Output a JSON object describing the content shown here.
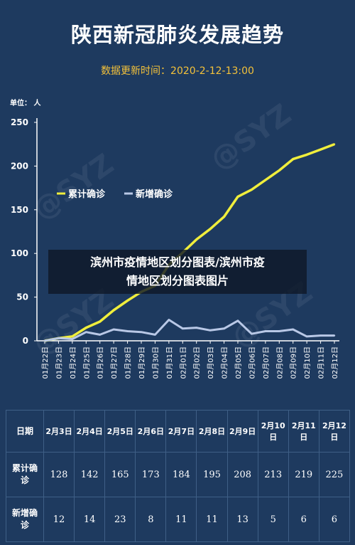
{
  "header": {
    "title": "陕西新冠肺炎发展趋势",
    "update_time": "数据更新时间：2020-2-12-13:00",
    "unit": "单位： 人"
  },
  "overlay": {
    "line1": "滨州市疫情地区划分图表/滨州市疫",
    "line2": "情地区划分图表图片"
  },
  "watermark": "@SYZ",
  "colors": {
    "background": "#1e3a5f",
    "cumulative": "#f0ee3c",
    "new": "#b9c8e6",
    "title_accent": "#f3c13a"
  },
  "chart_data": {
    "type": "line",
    "ylim": [
      0,
      250
    ],
    "yticks": [
      0,
      50,
      100,
      150,
      200,
      250
    ],
    "x": [
      "01月22日",
      "01月23日",
      "01月24日",
      "01月25日",
      "01月26日",
      "01月27日",
      "01月28日",
      "01月29日",
      "01月30日",
      "01月31日",
      "02月01日",
      "02月02日",
      "02月03日",
      "02月04日",
      "02月05日",
      "02月06日",
      "02月07日",
      "02月08日",
      "02月09日",
      "02月10日",
      "02月11日",
      "02月12日"
    ],
    "series": [
      {
        "name": "累计确诊",
        "values": [
          0,
          3,
          5,
          15,
          22,
          35,
          46,
          56,
          63,
          87,
          101,
          116,
          128,
          142,
          165,
          173,
          184,
          195,
          208,
          213,
          219,
          225
        ]
      },
      {
        "name": "新增确诊",
        "values": [
          0,
          3,
          2,
          10,
          7,
          13,
          11,
          10,
          7,
          24,
          14,
          15,
          12,
          14,
          23,
          8,
          11,
          11,
          13,
          5,
          6,
          6
        ]
      }
    ],
    "legend": "top-left",
    "grid": false
  },
  "table": {
    "row_headers": [
      "日期",
      "累计确诊",
      "新增确诊"
    ],
    "dates": [
      "2月3日",
      "2月4日",
      "2月5日",
      "2月6日",
      "2月7日",
      "2月8日",
      "2月9日",
      "2月10日",
      "2月11日",
      "2月12日"
    ],
    "cumulative": [
      "128",
      "142",
      "165",
      "173",
      "184",
      "195",
      "208",
      "213",
      "219",
      "225"
    ],
    "new": [
      "12",
      "14",
      "23",
      "8",
      "11",
      "11",
      "13",
      "5",
      "6",
      "6"
    ]
  }
}
